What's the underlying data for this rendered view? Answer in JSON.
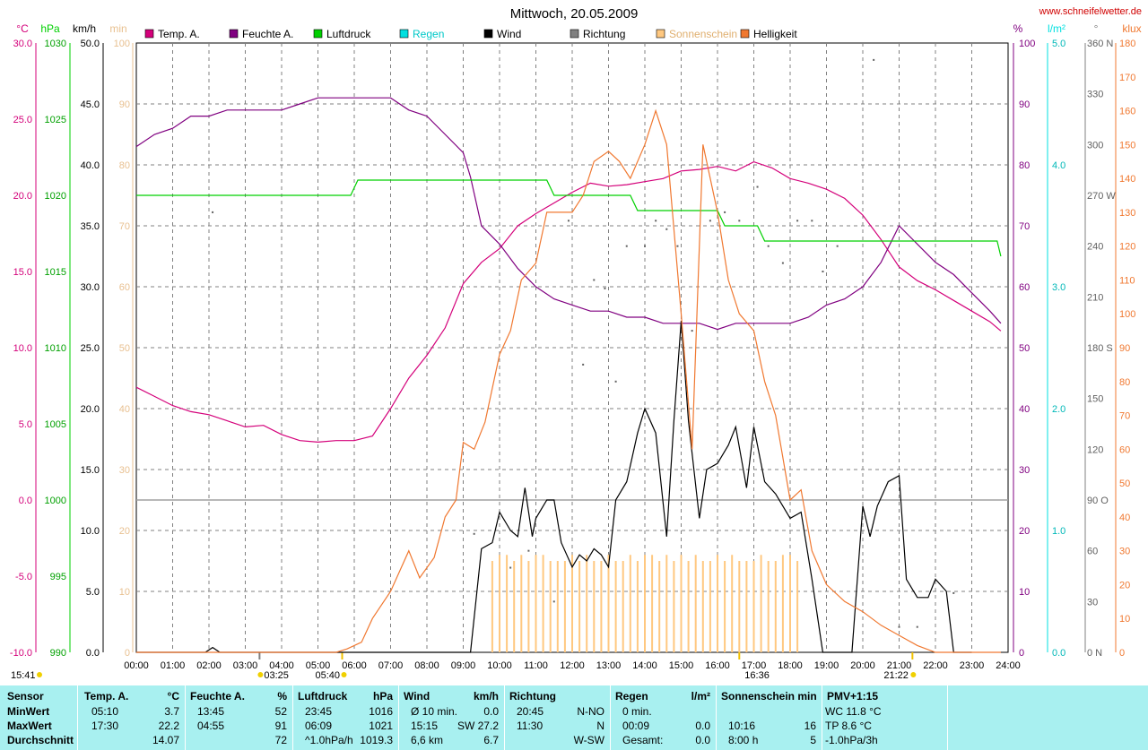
{
  "title": "Mittwoch, 20.05.2009",
  "site": "www.schneifelwetter.de",
  "colors": {
    "temp": "#d4007a",
    "hum": "#800080",
    "press": "#00d000",
    "rain": "#00e0e0",
    "wind": "#000000",
    "dir": "#808080",
    "sun": "#ffc880",
    "light": "#f07830",
    "summary_bg": "#a8f0f0"
  },
  "legend": [
    {
      "name": "Temp. A.",
      "color": "#d4007a"
    },
    {
      "name": "Feuchte A.",
      "color": "#800080"
    },
    {
      "name": "Luftdruck",
      "color": "#00d000"
    },
    {
      "name": "Regen",
      "color": "#00e0e0"
    },
    {
      "name": "Wind",
      "color": "#000000"
    },
    {
      "name": "Richtung",
      "color": "#808080"
    },
    {
      "name": "Sonnenschein",
      "color": "#ffc880"
    },
    {
      "name": "Helligkeit",
      "color": "#f07830"
    }
  ],
  "axis_units": {
    "temp": "°C",
    "press": "hPa",
    "wind": "km/h",
    "sun": "min",
    "hum": "%",
    "rain": "l/m²",
    "dir": "°",
    "light": "klux"
  },
  "axes": {
    "temp": [
      "30.0",
      "25.0",
      "20.0",
      "15.0",
      "10.0",
      "5.0",
      "0.0",
      "-5.0",
      "-10.0"
    ],
    "press": [
      "1030",
      "1025",
      "1020",
      "1015",
      "1010",
      "1005",
      "1000",
      "995",
      "990"
    ],
    "wind": [
      "50.0",
      "45.0",
      "40.0",
      "35.0",
      "30.0",
      "25.0",
      "20.0",
      "15.0",
      "10.0",
      "5.0",
      "0.0"
    ],
    "sun": [
      "100",
      "90",
      "80",
      "70",
      "60",
      "50",
      "40",
      "30",
      "20",
      "10",
      "0"
    ],
    "hum": [
      "100",
      "90",
      "80",
      "70",
      "60",
      "50",
      "40",
      "30",
      "20",
      "10",
      "0"
    ],
    "rain": [
      "5.0",
      "4.0",
      "3.0",
      "2.0",
      "1.0",
      "0.0"
    ],
    "dir": [
      "360 N",
      "330",
      "300",
      "270 W",
      "240",
      "210",
      "180 S",
      "150",
      "120",
      "90 O",
      "60",
      "30",
      "0 N"
    ],
    "light": [
      "180",
      "170",
      "160",
      "150",
      "140",
      "130",
      "120",
      "110",
      "100",
      "90",
      "80",
      "70",
      "60",
      "50",
      "40",
      "30",
      "20",
      "10",
      "0"
    ]
  },
  "time_ticks": [
    "00:00",
    "01:00",
    "02:00",
    "03:00",
    "04:00",
    "05:00",
    "06:00",
    "07:00",
    "08:00",
    "09:00",
    "10:00",
    "11:00",
    "12:00",
    "13:00",
    "14:00",
    "15:00",
    "16:00",
    "17:00",
    "18:00",
    "19:00",
    "20:00",
    "21:00",
    "22:00",
    "23:00",
    "24:00"
  ],
  "markers": {
    "moonset": "03:25",
    "sunrise": "05:40",
    "moonrise_prev": "15:41",
    "noon": "16:36",
    "sunset": "21:22"
  },
  "chart_data": {
    "type": "line",
    "x_label": "",
    "x_range": [
      0,
      24
    ],
    "series": [
      {
        "name": "Temp. A.",
        "axis": "temp",
        "ylim": [
          -10,
          30
        ],
        "x": [
          0,
          0.5,
          1,
          1.5,
          2,
          2.5,
          3,
          3.5,
          4,
          4.5,
          5,
          5.5,
          6,
          6.5,
          7,
          7.5,
          8,
          8.5,
          9,
          9.5,
          10,
          10.5,
          11,
          11.5,
          12,
          12.5,
          13,
          13.5,
          14,
          14.5,
          15,
          15.5,
          16,
          16.5,
          17,
          17.5,
          18,
          18.5,
          19,
          19.5,
          20,
          20.5,
          21,
          21.5,
          22,
          22.5,
          23,
          23.5,
          23.8
        ],
        "values": [
          7.4,
          6.8,
          6.2,
          5.8,
          5.6,
          5.2,
          4.8,
          4.9,
          4.3,
          3.9,
          3.8,
          3.9,
          3.9,
          4.2,
          6.0,
          8.0,
          9.5,
          11.3,
          14.2,
          15.6,
          16.5,
          18.0,
          18.8,
          19.5,
          20.2,
          20.8,
          20.6,
          20.7,
          20.9,
          21.1,
          21.6,
          21.7,
          21.9,
          21.6,
          22.2,
          21.8,
          21.1,
          20.8,
          20.4,
          19.8,
          18.7,
          17.1,
          15.3,
          14.4,
          13.8,
          13.1,
          12.4,
          11.7,
          11.1
        ]
      },
      {
        "name": "Feuchte A.",
        "axis": "hum",
        "ylim": [
          0,
          100
        ],
        "x": [
          0,
          0.5,
          1,
          1.5,
          2,
          2.5,
          3,
          3.5,
          4,
          4.5,
          5,
          5.5,
          6,
          6.5,
          7,
          7.5,
          8,
          8.5,
          9,
          9.2,
          9.5,
          10,
          10.5,
          11,
          11.5,
          12,
          12.5,
          13,
          13.5,
          14,
          14.5,
          15,
          15.5,
          16,
          16.5,
          17,
          17.5,
          18,
          18.5,
          19,
          19.5,
          20,
          20.5,
          21,
          21.5,
          22,
          22.5,
          23,
          23.5,
          23.8
        ],
        "values": [
          83,
          85,
          86,
          88,
          88,
          89,
          89,
          89,
          89,
          90,
          91,
          91,
          91,
          91,
          91,
          89,
          88,
          85,
          82,
          78,
          70,
          67,
          63,
          60,
          58,
          57,
          56,
          56,
          55,
          55,
          54,
          54,
          54,
          53,
          54,
          54,
          54,
          54,
          55,
          57,
          58,
          60,
          64,
          70,
          67,
          64,
          62,
          59,
          56,
          54
        ]
      },
      {
        "name": "Luftdruck",
        "axis": "press",
        "ylim": [
          990,
          1030
        ],
        "x": [
          0,
          5.9,
          6.1,
          11.3,
          11.5,
          13.6,
          13.8,
          16.0,
          16.2,
          17.1,
          17.3,
          23.7,
          23.8
        ],
        "values": [
          1020,
          1020,
          1021,
          1021,
          1020,
          1020,
          1019,
          1019,
          1018,
          1018,
          1017,
          1017,
          1016
        ]
      },
      {
        "name": "Wind",
        "axis": "wind",
        "ylim": [
          0,
          50
        ],
        "x": [
          0,
          1.9,
          2.1,
          2.3,
          9.2,
          9.5,
          9.8,
          10,
          10.3,
          10.5,
          10.7,
          10.9,
          11,
          11.3,
          11.5,
          11.7,
          12,
          12.2,
          12.4,
          12.6,
          12.8,
          13,
          13.2,
          13.5,
          13.8,
          14,
          14.3,
          14.6,
          14.8,
          15,
          15.2,
          15.5,
          15.7,
          16,
          16.3,
          16.5,
          16.8,
          17,
          17.3,
          17.6,
          17.9,
          18,
          18.3,
          18.6,
          18.9,
          19.2,
          19.5,
          19.7,
          20,
          20.2,
          20.4,
          20.7,
          21,
          21.2,
          21.5,
          21.8,
          22,
          22.3,
          22.5,
          22.8,
          23
        ],
        "values": [
          0,
          0,
          0.4,
          0,
          0,
          8.5,
          9,
          11.5,
          10,
          9.5,
          13.5,
          9.5,
          11,
          12.5,
          12.5,
          9,
          7,
          8,
          7.5,
          8.5,
          8,
          7,
          12.5,
          14,
          18,
          20,
          18,
          9.5,
          19,
          27.2,
          19,
          11,
          15,
          15.5,
          17,
          18.5,
          13.5,
          18.5,
          14,
          13,
          11.5,
          11,
          11.5,
          6,
          0,
          0,
          0,
          0,
          12,
          9.5,
          12,
          14,
          14.5,
          6,
          4.5,
          4.5,
          6,
          5,
          0,
          0,
          0
        ]
      },
      {
        "name": "Helligkeit",
        "axis": "light",
        "ylim": [
          0,
          180
        ],
        "x": [
          0,
          5.5,
          5.8,
          6.2,
          6.5,
          7,
          7.5,
          7.8,
          8.2,
          8.5,
          8.8,
          9,
          9.3,
          9.6,
          10,
          10.3,
          10.6,
          11,
          11.3,
          11.6,
          12,
          12.3,
          12.6,
          13,
          13.3,
          13.6,
          14,
          14.3,
          14.6,
          15,
          15.3,
          15.6,
          16,
          16.3,
          16.6,
          17,
          17.3,
          17.6,
          18,
          18.3,
          18.6,
          19,
          19.5,
          20,
          20.5,
          21,
          21.5,
          22,
          22.5,
          23,
          23.8
        ],
        "values": [
          0,
          0,
          1,
          3,
          10,
          18,
          30,
          22,
          28,
          40,
          45,
          62,
          60,
          68,
          88,
          95,
          110,
          115,
          130,
          130,
          130,
          135,
          145,
          148,
          145,
          140,
          150,
          160,
          150,
          100,
          60,
          150,
          130,
          110,
          100,
          95,
          80,
          70,
          45,
          48,
          30,
          20,
          15,
          12,
          8,
          5,
          2,
          0,
          0,
          0,
          0
        ]
      }
    ],
    "sunshine_minutes": {
      "axis": "sun",
      "ylim": [
        0,
        100
      ],
      "x": [
        9.8,
        10,
        10.2,
        10.4,
        10.6,
        10.8,
        11,
        11.2,
        11.4,
        11.6,
        11.8,
        12,
        12.2,
        12.4,
        12.6,
        12.8,
        13,
        13.2,
        13.4,
        13.6,
        13.8,
        14,
        14.2,
        14.4,
        14.6,
        14.8,
        15,
        15.2,
        15.4,
        15.6,
        15.8,
        16,
        16.2,
        16.4,
        16.6,
        16.8,
        17,
        17.2,
        17.4,
        17.6,
        17.8,
        18,
        18.2
      ],
      "values": [
        15,
        16,
        16,
        15,
        16,
        15,
        16,
        16,
        15,
        15,
        15,
        16,
        15,
        16,
        15,
        15,
        16,
        15,
        15,
        16,
        15,
        16,
        16,
        15,
        16,
        15,
        16,
        15,
        16,
        15,
        15,
        16,
        15,
        16,
        15,
        15,
        15,
        16,
        15,
        15,
        16,
        16,
        15
      ]
    },
    "direction": {
      "axis": "dir",
      "ylim": [
        0,
        360
      ],
      "x": [
        2.1,
        9.3,
        10.3,
        10.8,
        11.5,
        11.9,
        12.3,
        12.6,
        12.9,
        13.2,
        13.5,
        14.0,
        14.3,
        14.6,
        14.9,
        15.3,
        15.8,
        16.2,
        16.6,
        17.1,
        17.4,
        17.8,
        18.2,
        18.6,
        18.9,
        19.3,
        20.3,
        21.0,
        21.5,
        22.5
      ],
      "values": [
        260,
        70,
        50,
        60,
        30,
        255,
        170,
        220,
        215,
        160,
        240,
        240,
        255,
        250,
        240,
        190,
        255,
        260,
        255,
        275,
        240,
        230,
        255,
        255,
        225,
        240,
        350,
        15,
        15,
        35
      ]
    },
    "rain": {
      "axis": "rain",
      "ylim": [
        0,
        5
      ],
      "values": [
        0
      ]
    }
  },
  "summary": {
    "rows": [
      "MinWert",
      "MaxWert",
      "Durchschnitt"
    ],
    "sensor_label": "Sensor",
    "columns": [
      {
        "header": "Temp. A.",
        "unit": "°C",
        "cells": [
          [
            "05:10",
            "3.7"
          ],
          [
            "17:30",
            "22.2"
          ],
          [
            "",
            "14.07"
          ]
        ]
      },
      {
        "header": "Feuchte A.",
        "unit": "%",
        "cells": [
          [
            "13:45",
            "52"
          ],
          [
            "04:55",
            "91"
          ],
          [
            "",
            "72"
          ]
        ]
      },
      {
        "header": "Luftdruck",
        "unit": "hPa",
        "cells": [
          [
            "23:45",
            "1016"
          ],
          [
            "06:09",
            "1021"
          ],
          [
            "^1.0hPa/h",
            "1019.3"
          ]
        ]
      },
      {
        "header": "Wind",
        "unit": "km/h",
        "cells": [
          [
            "Ø 10 min.",
            "0.0"
          ],
          [
            "15:15",
            "SW 27.2"
          ],
          [
            "6,6 km",
            "6.7"
          ]
        ]
      },
      {
        "header": "Richtung",
        "unit": "",
        "cells": [
          [
            "20:45",
            "N-NO"
          ],
          [
            "11:30",
            "N"
          ],
          [
            "",
            "W-SW"
          ]
        ]
      },
      {
        "header": "Regen",
        "unit": "l/m²",
        "cells": [
          [
            "0 min.",
            ""
          ],
          [
            "00:09",
            "0.0"
          ],
          [
            "Gesamt:",
            "0.0"
          ]
        ]
      },
      {
        "header": "Sonnenschein min",
        "unit": "",
        "cells": [
          [
            "",
            ""
          ],
          [
            "10:16",
            "16"
          ],
          [
            "8:00 h",
            "5"
          ]
        ]
      },
      {
        "header": "PMV+1:15",
        "unit": "",
        "cells": [
          [
            "WC 11.8 °C",
            ""
          ],
          [
            "TP 8.6 °C",
            ""
          ],
          [
            "-1.0hPa/3h",
            ""
          ]
        ]
      }
    ]
  }
}
